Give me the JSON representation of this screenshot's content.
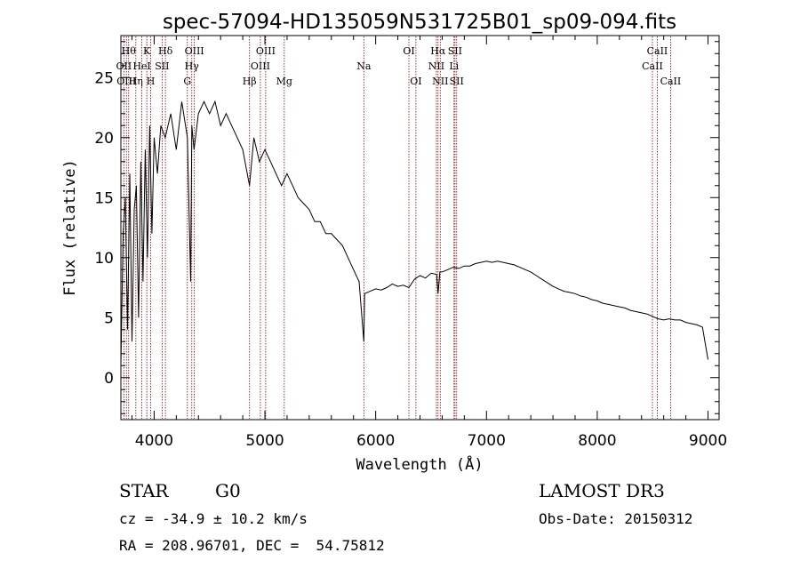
{
  "chart_data": {
    "type": "line",
    "title": "spec-57094-HD135059N531725B01_sp09-094.fits",
    "xlabel": "Wavelength (Å)",
    "ylabel": "Flux (relative)",
    "xlim": [
      3700,
      9100
    ],
    "ylim": [
      -3.5,
      28.5
    ],
    "xticks": [
      "4000",
      "5000",
      "6000",
      "7000",
      "8000",
      "9000"
    ],
    "xtick_values": [
      4000,
      5000,
      6000,
      7000,
      8000,
      9000
    ],
    "yticks": [
      "0",
      "5",
      "10",
      "15",
      "20",
      "25"
    ],
    "ytick_values": [
      0,
      5,
      10,
      15,
      20,
      25
    ],
    "grid": false,
    "series": [
      {
        "x": [
          3700,
          3720,
          3740,
          3760,
          3780,
          3800,
          3820,
          3840,
          3860,
          3880,
          3900,
          3920,
          3940,
          3960,
          3980,
          4000,
          4030,
          4060,
          4100,
          4150,
          4200,
          4250,
          4300,
          4330,
          4340,
          4360,
          4400,
          4450,
          4500,
          4550,
          4600,
          4650,
          4700,
          4750,
          4800,
          4861,
          4900,
          4950,
          5000,
          5050,
          5100,
          5150,
          5200,
          5250,
          5300,
          5350,
          5400,
          5450,
          5500,
          5550,
          5600,
          5650,
          5700,
          5750,
          5800,
          5850,
          5893,
          5900,
          5950,
          6000,
          6050,
          6100,
          6150,
          6200,
          6250,
          6300,
          6350,
          6400,
          6450,
          6500,
          6550,
          6563,
          6580,
          6600,
          6650,
          6700,
          6750,
          6800,
          6850,
          6900,
          6950,
          7000,
          7050,
          7100,
          7150,
          7200,
          7250,
          7300,
          7350,
          7400,
          7450,
          7500,
          7550,
          7600,
          7650,
          7700,
          7750,
          7800,
          7850,
          7900,
          7950,
          8000,
          8050,
          8100,
          8150,
          8200,
          8250,
          8300,
          8350,
          8400,
          8450,
          8500,
          8550,
          8600,
          8650,
          8700,
          8750,
          8800,
          8850,
          8900,
          8950,
          9000
        ],
        "values": [
          1,
          12,
          15,
          4,
          17,
          3,
          14,
          16,
          5,
          18,
          8,
          19,
          10,
          21,
          12,
          20,
          17,
          21,
          20,
          22,
          19,
          23,
          20,
          8,
          21,
          19,
          22,
          23,
          22,
          23,
          21,
          22,
          21,
          20,
          19,
          16,
          20,
          18,
          19,
          18,
          17,
          16,
          17,
          16,
          15,
          14.5,
          14,
          13,
          13,
          12,
          12,
          11.5,
          11,
          10,
          9,
          8,
          3,
          7,
          7.2,
          7.4,
          7.3,
          7.5,
          7.8,
          7.6,
          7.7,
          7.5,
          8.2,
          8.5,
          8.3,
          8.7,
          8.6,
          7,
          8.8,
          8.8,
          9,
          9.2,
          9.1,
          9.3,
          9.3,
          9.5,
          9.6,
          9.7,
          9.6,
          9.7,
          9.6,
          9.5,
          9.4,
          9.2,
          9,
          8.8,
          8.5,
          8.2,
          7.9,
          7.6,
          7.4,
          7.2,
          7.1,
          7,
          6.8,
          6.7,
          6.5,
          6.4,
          6.2,
          6.1,
          6,
          5.9,
          5.8,
          5.6,
          5.5,
          5.4,
          5.3,
          5.1,
          4.9,
          4.8,
          4.9,
          4.8,
          4.8,
          4.6,
          4.5,
          4.4,
          4.2,
          1.5
        ]
      }
    ],
    "lines": [
      {
        "w": 3727,
        "label": "OII",
        "row": 1
      },
      {
        "w": 3750,
        "label": "OIII",
        "row": 2
      },
      {
        "w": 3770,
        "label": "Hθ",
        "row": 0
      },
      {
        "w": 3835,
        "label": "Hη",
        "row": 2
      },
      {
        "w": 3889,
        "label": "HeI",
        "row": 1
      },
      {
        "w": 3934,
        "label": "K",
        "row": 0
      },
      {
        "w": 3969,
        "label": "H",
        "row": 2
      },
      {
        "w": 4072,
        "label": "SII",
        "row": 1
      },
      {
        "w": 4102,
        "label": "Hδ",
        "row": 0
      },
      {
        "w": 4300,
        "label": "G",
        "row": 2
      },
      {
        "w": 4340,
        "label": "Hγ",
        "row": 1
      },
      {
        "w": 4363,
        "label": "OIII",
        "row": 0
      },
      {
        "w": 4861,
        "label": "Hβ",
        "row": 2
      },
      {
        "w": 4959,
        "label": "OIII",
        "row": 1
      },
      {
        "w": 5007,
        "label": "OIII",
        "row": 0
      },
      {
        "w": 5175,
        "label": "Mg",
        "row": 2
      },
      {
        "w": 5893,
        "label": "Na",
        "row": 1
      },
      {
        "w": 6300,
        "label": "OI",
        "row": 0
      },
      {
        "w": 6363,
        "label": "OI",
        "row": 2
      },
      {
        "w": 6548,
        "label": "NII",
        "row": 1
      },
      {
        "w": 6563,
        "label": "Hα",
        "row": 0
      },
      {
        "w": 6583,
        "label": "NII",
        "row": 2
      },
      {
        "w": 6707,
        "label": "Li",
        "row": 1
      },
      {
        "w": 6716,
        "label": "SII",
        "row": 0
      },
      {
        "w": 6731,
        "label": "SII",
        "row": 2
      },
      {
        "w": 8498,
        "label": "CaII",
        "row": 1
      },
      {
        "w": 8542,
        "label": "CaII",
        "row": 0
      },
      {
        "w": 8662,
        "label": "CaII",
        "row": 2
      }
    ]
  },
  "info": {
    "class": "STAR",
    "subclass": "G0",
    "survey": "LAMOST DR3",
    "cz": "cz = -34.9 ± 10.2 km/s",
    "obs_date": "Obs-Date: 20150312",
    "radec": "RA = 208.96701, DEC =  54.75812"
  }
}
